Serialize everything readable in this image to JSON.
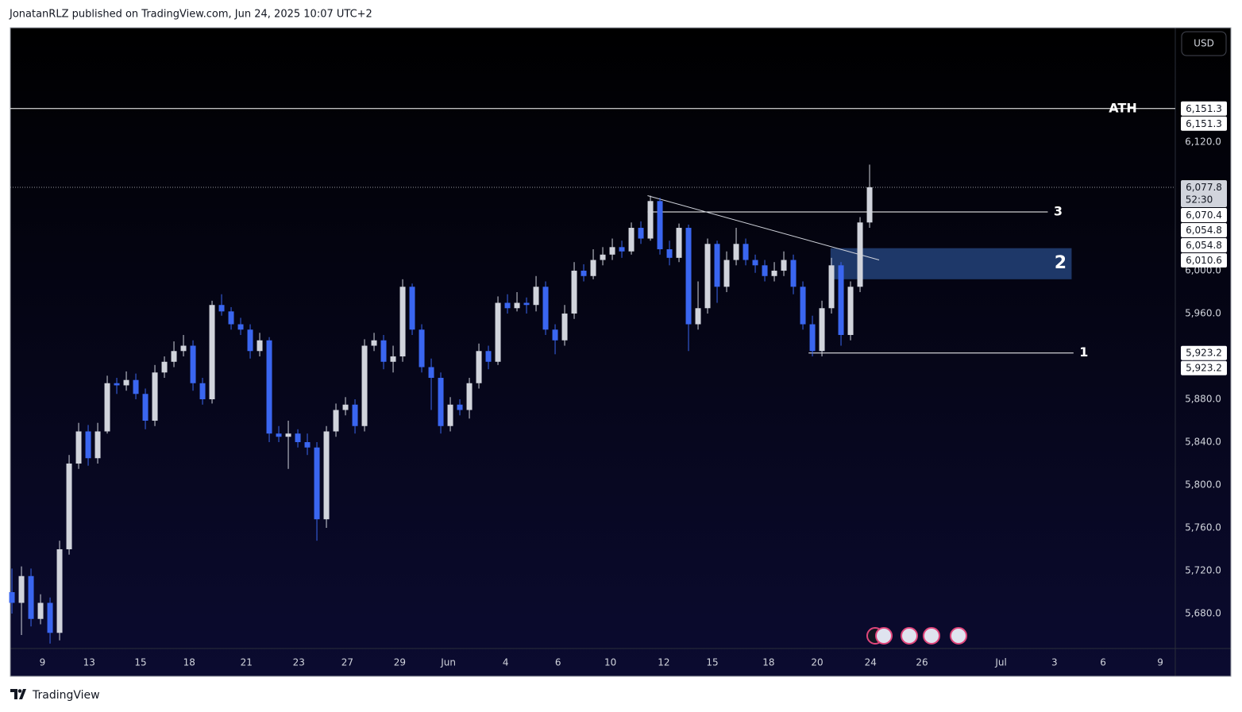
{
  "header": {
    "text": "JonatanRLZ published on TradingView.com, Jun 24, 2025 10:07 UTC+2"
  },
  "footer": {
    "brand": "TradingView"
  },
  "chart_data": {
    "type": "candlestick",
    "currency": "USD",
    "up_color": "#d1d4dc",
    "down_color": "#3a66f0",
    "grid": false,
    "open": [
      5700,
      5690,
      5715,
      5675,
      5690,
      5662,
      5740,
      5820,
      5850,
      5825,
      5850,
      5895,
      5893,
      5898,
      5885,
      5860,
      5905,
      5915,
      5925,
      5930,
      5895,
      5880,
      5968,
      5962,
      5950,
      5945,
      5925,
      5935,
      5848,
      5845,
      5848,
      5840,
      5835,
      5768,
      5850,
      5870,
      5875,
      5855,
      5930,
      5935,
      5915,
      5920,
      5985,
      5945,
      5910,
      5900,
      5855,
      5875,
      5870,
      5895,
      5925,
      5915,
      5970,
      5965,
      5970,
      5968,
      5985,
      5945,
      5935,
      5960,
      6000,
      5995,
      6010,
      6015,
      6022,
      6018,
      6040,
      6030,
      6065,
      6020,
      6012,
      6040,
      5950,
      5965,
      6025,
      5985,
      6010,
      6025,
      6010,
      6005,
      5995,
      6000,
      6010,
      5985,
      5950,
      5925,
      5965,
      6005,
      5940,
      5985,
      6045
    ],
    "high": [
      5722,
      5724,
      5722,
      5698,
      5695,
      5748,
      5828,
      5858,
      5856,
      5858,
      5902,
      5900,
      5906,
      5904,
      5890,
      5912,
      5920,
      5934,
      5940,
      5935,
      5900,
      5972,
      5978,
      5966,
      5956,
      5950,
      5942,
      5938,
      5855,
      5860,
      5852,
      5848,
      5840,
      5855,
      5876,
      5882,
      5880,
      5936,
      5942,
      5940,
      5930,
      5992,
      5988,
      5950,
      5918,
      5905,
      5882,
      5880,
      5900,
      5932,
      5930,
      5976,
      5978,
      5980,
      5975,
      5995,
      5990,
      5950,
      5968,
      6008,
      6006,
      6020,
      6022,
      6030,
      6028,
      6045,
      6046,
      6070,
      6068,
      6028,
      6044,
      6043,
      5990,
      6030,
      6028,
      6018,
      6040,
      6030,
      6015,
      6010,
      6008,
      6018,
      6015,
      5990,
      5958,
      5972,
      6012,
      6008,
      5990,
      6050,
      6099
    ],
    "low": [
      5680,
      5660,
      5668,
      5670,
      5652,
      5655,
      5735,
      5815,
      5818,
      5820,
      5848,
      5885,
      5888,
      5880,
      5852,
      5855,
      5900,
      5910,
      5920,
      5888,
      5875,
      5876,
      5958,
      5945,
      5940,
      5918,
      5920,
      5840,
      5840,
      5815,
      5835,
      5828,
      5748,
      5760,
      5845,
      5865,
      5848,
      5850,
      5925,
      5908,
      5905,
      5915,
      5940,
      5905,
      5870,
      5848,
      5850,
      5865,
      5862,
      5890,
      5908,
      5912,
      5960,
      5962,
      5960,
      5962,
      5940,
      5922,
      5930,
      5955,
      5990,
      5992,
      6005,
      6010,
      6012,
      6015,
      6025,
      6028,
      6015,
      6005,
      6008,
      5925,
      5945,
      5960,
      5970,
      5980,
      6005,
      6005,
      5998,
      5990,
      5990,
      5995,
      5978,
      5945,
      5920,
      5920,
      5960,
      5930,
      5935,
      5980,
      6040
    ],
    "close": [
      5690,
      5715,
      5675,
      5690,
      5662,
      5740,
      5820,
      5850,
      5825,
      5850,
      5895,
      5893,
      5898,
      5885,
      5860,
      5905,
      5915,
      5925,
      5930,
      5895,
      5880,
      5968,
      5962,
      5950,
      5945,
      5925,
      5935,
      5848,
      5845,
      5848,
      5840,
      5835,
      5768,
      5850,
      5870,
      5875,
      5855,
      5930,
      5935,
      5915,
      5920,
      5985,
      5945,
      5910,
      5900,
      5855,
      5875,
      5870,
      5895,
      5925,
      5915,
      5970,
      5965,
      5970,
      5968,
      5985,
      5945,
      5935,
      5960,
      6000,
      5995,
      6010,
      6015,
      6022,
      6018,
      6040,
      6030,
      6065,
      6020,
      6012,
      6040,
      5950,
      5965,
      6025,
      5985,
      6010,
      6025,
      6010,
      6005,
      5995,
      6000,
      6010,
      5985,
      5950,
      5925,
      5965,
      6005,
      5940,
      5985,
      6045,
      6077.8
    ],
    "xlim": [
      -0.17,
      122.08
    ],
    "xticks": [
      {
        "value": 3.2,
        "label": "9"
      },
      {
        "value": 8.1,
        "label": "13"
      },
      {
        "value": 13.5,
        "label": "15"
      },
      {
        "value": 18.6,
        "label": "18"
      },
      {
        "value": 24.6,
        "label": "21"
      },
      {
        "value": 30.1,
        "label": "23"
      },
      {
        "value": 35.2,
        "label": "27"
      },
      {
        "value": 40.7,
        "label": "29"
      },
      {
        "value": 45.8,
        "label": "Jun"
      },
      {
        "value": 51.8,
        "label": "4"
      },
      {
        "value": 57.3,
        "label": "6"
      },
      {
        "value": 62.8,
        "label": "10"
      },
      {
        "value": 68.4,
        "label": "12"
      },
      {
        "value": 73.5,
        "label": "15"
      },
      {
        "value": 79.4,
        "label": "18"
      },
      {
        "value": 84.5,
        "label": "20"
      },
      {
        "value": 90.1,
        "label": "24"
      },
      {
        "value": 95.5,
        "label": "26"
      },
      {
        "value": 103.8,
        "label": "Jul"
      },
      {
        "value": 109.4,
        "label": "3"
      },
      {
        "value": 114.5,
        "label": "6"
      },
      {
        "value": 120.5,
        "label": "9"
      }
    ],
    "ylim": [
      5647.4,
      6226.7
    ],
    "yticks": [
      {
        "value": 5680,
        "label": "5,680.0"
      },
      {
        "value": 5720,
        "label": "5,720.0"
      },
      {
        "value": 5760,
        "label": "5,760.0"
      },
      {
        "value": 5800,
        "label": "5,800.0"
      },
      {
        "value": 5840,
        "label": "5,840.0"
      },
      {
        "value": 5880,
        "label": "5,880.0"
      },
      {
        "value": 5920,
        "label": "5,920.0"
      },
      {
        "value": 5960,
        "label": "5,960.0"
      },
      {
        "value": 6000,
        "label": "6,000.0"
      },
      {
        "value": 6120,
        "label": "6,120.0"
      }
    ],
    "price_labels": [
      {
        "value": 6151.3,
        "label": "6,151.3"
      },
      {
        "value": 6151.3,
        "label": "6,151.3"
      },
      {
        "value": 6077.8,
        "label": "6,077.8",
        "countdown": "52:30"
      },
      {
        "value": 6070.4,
        "label": "6,070.4"
      },
      {
        "value": 6054.8,
        "label": "6,054.8"
      },
      {
        "value": 6054.8,
        "label": "6,054.8"
      },
      {
        "value": 6010.6,
        "label": "6,010.6"
      },
      {
        "value": 5923.2,
        "label": "5,923.2"
      },
      {
        "value": 5923.2,
        "label": "5,923.2"
      }
    ],
    "ath_line": {
      "value": 6151.3,
      "label": "ATH"
    },
    "level_3": {
      "value": 6054.8,
      "label": "3",
      "x": [
        66.7,
        108.7
      ]
    },
    "level_1": {
      "value": 5923.2,
      "label": "1",
      "x": [
        83.6,
        111.4
      ]
    },
    "zone_2": {
      "high": 6021,
      "low": 5992,
      "label": "2",
      "x": [
        85.9,
        111.2
      ]
    },
    "trendline": {
      "x": [
        66.7,
        91
      ],
      "y": [
        6070,
        6010
      ]
    }
  }
}
